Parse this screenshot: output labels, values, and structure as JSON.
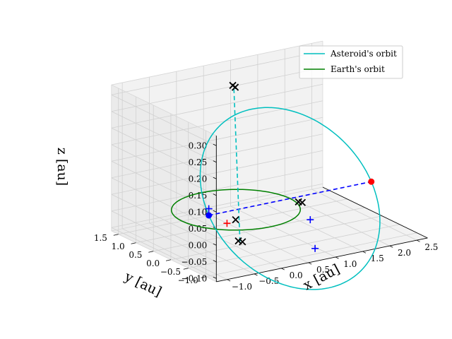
{
  "chart_data": {
    "type": "scatter",
    "projection": "3d",
    "xlabel": "x [au]",
    "ylabel": "y [au]",
    "zlabel": "z [au]",
    "xlim": [
      -1.2,
      2.7
    ],
    "ylim": [
      -1.3,
      1.7
    ],
    "zlim": [
      -0.11,
      0.33
    ],
    "x_ticks": [
      -1.0,
      -0.5,
      0.0,
      0.5,
      1.0,
      1.5,
      2.0,
      2.5
    ],
    "y_ticks": [
      -1.0,
      -0.5,
      0.0,
      0.5,
      1.0,
      1.5
    ],
    "z_ticks": [
      -0.1,
      -0.05,
      0.0,
      0.05,
      0.1,
      0.15,
      0.2,
      0.25,
      0.3
    ],
    "x_tick_labels": [
      "−1.0",
      "−0.5",
      "0.0",
      "0.5",
      "1.0",
      "1.5",
      "2.0",
      "2.5"
    ],
    "y_tick_labels": [
      "−1.0",
      "−0.5",
      "0.0",
      "0.5",
      "1.0",
      "1.5"
    ],
    "z_tick_labels": [
      "−0.10",
      "−0.05",
      "0.00",
      "0.05",
      "0.10",
      "0.15",
      "0.20",
      "0.25",
      "0.30"
    ],
    "grid": true,
    "legend_position": "top-right",
    "series": [
      {
        "name": "Asteroid's orbit",
        "kind": "ellipse",
        "color": "#00bfbf",
        "semi_major_axis": 1.5,
        "eccentricity": 0.6667,
        "inclination_deg": 11,
        "perihelion_x": -0.5,
        "aphelion_x": 2.5
      },
      {
        "name": "Earth's orbit",
        "kind": "circle",
        "color": "#008000",
        "radius": 1.0
      }
    ],
    "markers": {
      "blue_dots": [
        {
          "x": -0.5,
          "y": 0.0,
          "z": 0.0
        }
      ],
      "red_dots": [
        {
          "x": 2.5,
          "y": 0.0,
          "z": 0.0
        }
      ],
      "blue_plus": [
        {
          "x": -0.5,
          "y": 0.0,
          "z": 0.02
        },
        {
          "x": 1.05,
          "y": -0.5,
          "z": -0.04
        },
        {
          "x": 0.7,
          "y": -1.18,
          "z": -0.08
        }
      ],
      "red_plus": [
        {
          "x": 0.32,
          "y": 0.75,
          "z": -0.09
        }
      ],
      "black_x": [
        {
          "x": 0.62,
          "y": 1.05,
          "z": 0.3
        },
        {
          "x": 0.62,
          "y": 0.98,
          "z": 0.298
        },
        {
          "x": 1.05,
          "y": -0.27,
          "z": 0.0
        },
        {
          "x": 1.02,
          "y": -0.21,
          "z": 0.0
        },
        {
          "x": 0.35,
          "y": 0.55,
          "z": -0.07
        },
        {
          "x": -0.18,
          "y": -0.35,
          "z": -0.07
        },
        {
          "x": -0.15,
          "y": -0.42,
          "z": -0.07
        }
      ]
    },
    "dashed_lines": [
      {
        "color": "#0000ff",
        "from": {
          "x": -0.5,
          "y": 0.0,
          "z": 0.0
        },
        "to": {
          "x": 2.5,
          "y": 0.0,
          "z": 0.0
        }
      },
      {
        "color": "#00bfbf",
        "from": {
          "x": -0.17,
          "y": -0.38,
          "z": -0.07
        },
        "to": {
          "x": 0.62,
          "y": 1.02,
          "z": 0.299
        }
      }
    ]
  }
}
